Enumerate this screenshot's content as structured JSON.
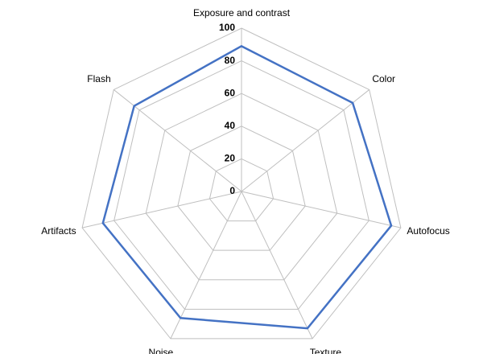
{
  "chart_data": {
    "type": "radar",
    "categories": [
      "Exposure and contrast",
      "Color",
      "Autofocus",
      "Texture",
      "Noise",
      "Artifacts",
      "Flash"
    ],
    "values": [
      89,
      87,
      94,
      93,
      86,
      87,
      84
    ],
    "color": "#4472c4",
    "ylim": [
      0,
      100
    ],
    "yticks": [
      0,
      20,
      40,
      60,
      80,
      100
    ],
    "grid": true
  }
}
